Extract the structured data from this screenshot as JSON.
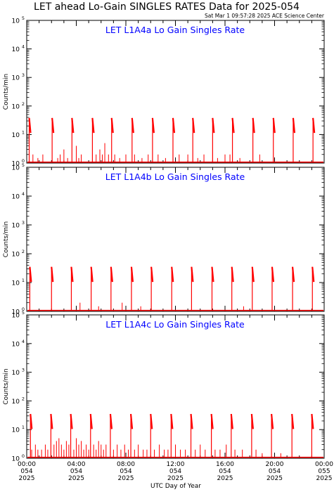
{
  "header": {
    "title": "LET ahead Lo-Gain SINGLES RATES Data for 2025-054",
    "timestamp": "Sat Mar  1 09:57:28 2025 ACE Science Center"
  },
  "colors": {
    "series": "#ff0000",
    "panel_title": "#0000ff",
    "axes": "#000000"
  },
  "chart_data": [
    {
      "type": "line",
      "title": "LET L1A4a Lo Gain Singles Rate",
      "ylabel": "Counts/min",
      "yscale": "log",
      "ylim": [
        1,
        100000
      ],
      "xlim": [
        0,
        24
      ],
      "grid": false,
      "ytick_labels": [
        [
          "10",
          "0"
        ],
        [
          "10",
          "1"
        ],
        [
          "10",
          "2"
        ],
        [
          "10",
          "3"
        ],
        [
          "10",
          "4"
        ],
        [
          "10",
          "5"
        ]
      ],
      "spikes": [
        {
          "x": 0.2,
          "peak": 38
        },
        {
          "x": 2.05,
          "peak": 38
        },
        {
          "x": 3.65,
          "peak": 38
        },
        {
          "x": 5.3,
          "peak": 38
        },
        {
          "x": 6.85,
          "peak": 38
        },
        {
          "x": 8.5,
          "peak": 38
        },
        {
          "x": 10.15,
          "peak": 38
        },
        {
          "x": 11.8,
          "peak": 38
        },
        {
          "x": 13.4,
          "peak": 38
        },
        {
          "x": 15.0,
          "peak": 38
        },
        {
          "x": 16.6,
          "peak": 38
        },
        {
          "x": 18.25,
          "peak": 38
        },
        {
          "x": 19.9,
          "peak": 38
        },
        {
          "x": 21.5,
          "peak": 38
        },
        {
          "x": 23.1,
          "peak": 38
        }
      ],
      "events": [
        {
          "x": 0.5,
          "y": 2
        },
        {
          "x": 0.9,
          "y": 1.5
        },
        {
          "x": 1.3,
          "y": 2
        },
        {
          "x": 2.5,
          "y": 1.5
        },
        {
          "x": 2.7,
          "y": 2
        },
        {
          "x": 3.0,
          "y": 3
        },
        {
          "x": 3.3,
          "y": 1.5
        },
        {
          "x": 4.0,
          "y": 4
        },
        {
          "x": 4.2,
          "y": 1.5
        },
        {
          "x": 4.4,
          "y": 2
        },
        {
          "x": 5.6,
          "y": 2
        },
        {
          "x": 5.9,
          "y": 3
        },
        {
          "x": 6.1,
          "y": 2
        },
        {
          "x": 6.3,
          "y": 5
        },
        {
          "x": 6.6,
          "y": 2
        },
        {
          "x": 7.1,
          "y": 2
        },
        {
          "x": 7.5,
          "y": 1.5
        },
        {
          "x": 8.0,
          "y": 2
        },
        {
          "x": 8.7,
          "y": 2
        },
        {
          "x": 9.3,
          "y": 1.5
        },
        {
          "x": 9.8,
          "y": 2
        },
        {
          "x": 10.6,
          "y": 2
        },
        {
          "x": 11.2,
          "y": 1.5
        },
        {
          "x": 12.3,
          "y": 2
        },
        {
          "x": 13.0,
          "y": 2
        },
        {
          "x": 13.8,
          "y": 1.5
        },
        {
          "x": 14.3,
          "y": 2
        },
        {
          "x": 15.4,
          "y": 1.5
        },
        {
          "x": 16.0,
          "y": 2
        },
        {
          "x": 16.4,
          "y": 2
        },
        {
          "x": 17.2,
          "y": 1.5
        },
        {
          "x": 18.8,
          "y": 2
        }
      ]
    },
    {
      "type": "line",
      "title": "LET L1A4b Lo Gain Singles Rate",
      "ylabel": "Counts/min",
      "yscale": "log",
      "ylim": [
        1,
        100000
      ],
      "xlim": [
        0,
        24
      ],
      "grid": false,
      "ytick_labels": [
        [
          "10",
          "0"
        ],
        [
          "10",
          "1"
        ],
        [
          "10",
          "2"
        ],
        [
          "10",
          "3"
        ],
        [
          "10",
          "4"
        ],
        [
          "10",
          "5"
        ]
      ],
      "spikes": [
        {
          "x": 0.25,
          "peak": 35
        },
        {
          "x": 2.0,
          "peak": 35
        },
        {
          "x": 3.6,
          "peak": 35
        },
        {
          "x": 5.2,
          "peak": 35
        },
        {
          "x": 6.8,
          "peak": 35
        },
        {
          "x": 8.45,
          "peak": 35
        },
        {
          "x": 10.05,
          "peak": 35
        },
        {
          "x": 11.7,
          "peak": 35
        },
        {
          "x": 13.3,
          "peak": 35
        },
        {
          "x": 14.95,
          "peak": 35
        },
        {
          "x": 16.55,
          "peak": 35
        },
        {
          "x": 18.2,
          "peak": 35
        },
        {
          "x": 19.8,
          "peak": 35
        },
        {
          "x": 21.45,
          "peak": 35
        },
        {
          "x": 23.05,
          "peak": 35
        }
      ],
      "events": [
        {
          "x": 4.3,
          "y": 2
        },
        {
          "x": 5.8,
          "y": 1.5
        },
        {
          "x": 7.7,
          "y": 2
        },
        {
          "x": 9.2,
          "y": 1.5
        },
        {
          "x": 17.5,
          "y": 1.5
        }
      ]
    },
    {
      "type": "line",
      "title": "LET L1A4c Lo Gain Singles Rate",
      "ylabel": "Counts/min",
      "yscale": "log",
      "ylim": [
        1,
        100000
      ],
      "xlim": [
        0,
        24
      ],
      "grid": false,
      "ytick_labels": [
        [
          "10",
          "0"
        ],
        [
          "10",
          "1"
        ],
        [
          "10",
          "2"
        ],
        [
          "10",
          "3"
        ],
        [
          "10",
          "4"
        ],
        [
          "10",
          "5"
        ]
      ],
      "spikes": [
        {
          "x": 0.3,
          "peak": 35
        },
        {
          "x": 1.95,
          "peak": 35
        },
        {
          "x": 3.55,
          "peak": 35
        },
        {
          "x": 5.15,
          "peak": 35
        },
        {
          "x": 6.75,
          "peak": 35
        },
        {
          "x": 8.4,
          "peak": 35
        },
        {
          "x": 10.0,
          "peak": 35
        },
        {
          "x": 11.65,
          "peak": 35
        },
        {
          "x": 13.25,
          "peak": 35
        },
        {
          "x": 14.9,
          "peak": 35
        },
        {
          "x": 16.5,
          "peak": 35
        },
        {
          "x": 18.15,
          "peak": 35
        },
        {
          "x": 19.75,
          "peak": 35
        },
        {
          "x": 21.4,
          "peak": 35
        },
        {
          "x": 23.0,
          "peak": 35
        }
      ],
      "events": [
        {
          "x": 0.4,
          "y": 2
        },
        {
          "x": 0.7,
          "y": 3
        },
        {
          "x": 0.9,
          "y": 2
        },
        {
          "x": 1.2,
          "y": 2
        },
        {
          "x": 1.5,
          "y": 3
        },
        {
          "x": 1.7,
          "y": 2
        },
        {
          "x": 2.2,
          "y": 3
        },
        {
          "x": 2.4,
          "y": 4
        },
        {
          "x": 2.6,
          "y": 5
        },
        {
          "x": 2.8,
          "y": 3
        },
        {
          "x": 3.0,
          "y": 2
        },
        {
          "x": 3.2,
          "y": 4
        },
        {
          "x": 3.4,
          "y": 3
        },
        {
          "x": 3.8,
          "y": 2
        },
        {
          "x": 4.0,
          "y": 5
        },
        {
          "x": 4.2,
          "y": 3
        },
        {
          "x": 4.4,
          "y": 4
        },
        {
          "x": 4.6,
          "y": 2
        },
        {
          "x": 4.8,
          "y": 3
        },
        {
          "x": 5.0,
          "y": 2
        },
        {
          "x": 5.4,
          "y": 3
        },
        {
          "x": 5.6,
          "y": 2
        },
        {
          "x": 5.8,
          "y": 4
        },
        {
          "x": 6.0,
          "y": 3
        },
        {
          "x": 6.2,
          "y": 2
        },
        {
          "x": 6.4,
          "y": 3
        },
        {
          "x": 7.0,
          "y": 2
        },
        {
          "x": 7.3,
          "y": 3
        },
        {
          "x": 7.6,
          "y": 2
        },
        {
          "x": 7.9,
          "y": 3
        },
        {
          "x": 8.2,
          "y": 2
        },
        {
          "x": 8.7,
          "y": 2
        },
        {
          "x": 9.0,
          "y": 3
        },
        {
          "x": 9.4,
          "y": 2
        },
        {
          "x": 9.7,
          "y": 2
        },
        {
          "x": 10.3,
          "y": 2
        },
        {
          "x": 10.7,
          "y": 3
        },
        {
          "x": 11.1,
          "y": 2
        },
        {
          "x": 11.4,
          "y": 2
        },
        {
          "x": 12.0,
          "y": 3
        },
        {
          "x": 12.4,
          "y": 2
        },
        {
          "x": 12.8,
          "y": 2
        },
        {
          "x": 13.6,
          "y": 2
        },
        {
          "x": 14.0,
          "y": 3
        },
        {
          "x": 14.4,
          "y": 2
        },
        {
          "x": 15.2,
          "y": 2
        },
        {
          "x": 15.6,
          "y": 2
        },
        {
          "x": 16.1,
          "y": 3
        },
        {
          "x": 16.8,
          "y": 2
        },
        {
          "x": 17.4,
          "y": 2
        },
        {
          "x": 18.5,
          "y": 2
        },
        {
          "x": 19.0,
          "y": 1.5
        },
        {
          "x": 20.5,
          "y": 1.5
        }
      ]
    }
  ],
  "x_axis": {
    "label": "UTC Day of Year",
    "ticks": [
      {
        "x": 0,
        "time": "00:00",
        "doy": "054",
        "year": "2025"
      },
      {
        "x": 4,
        "time": "04:00",
        "doy": "054",
        "year": "2025"
      },
      {
        "x": 8,
        "time": "08:00",
        "doy": "054",
        "year": "2025"
      },
      {
        "x": 12,
        "time": "12:00",
        "doy": "054",
        "year": "2025"
      },
      {
        "x": 16,
        "time": "16:00",
        "doy": "054",
        "year": "2025"
      },
      {
        "x": 20,
        "time": "20:00",
        "doy": "054",
        "year": "2025"
      },
      {
        "x": 24,
        "time": "00:00",
        "doy": "055",
        "year": "2025"
      }
    ]
  }
}
